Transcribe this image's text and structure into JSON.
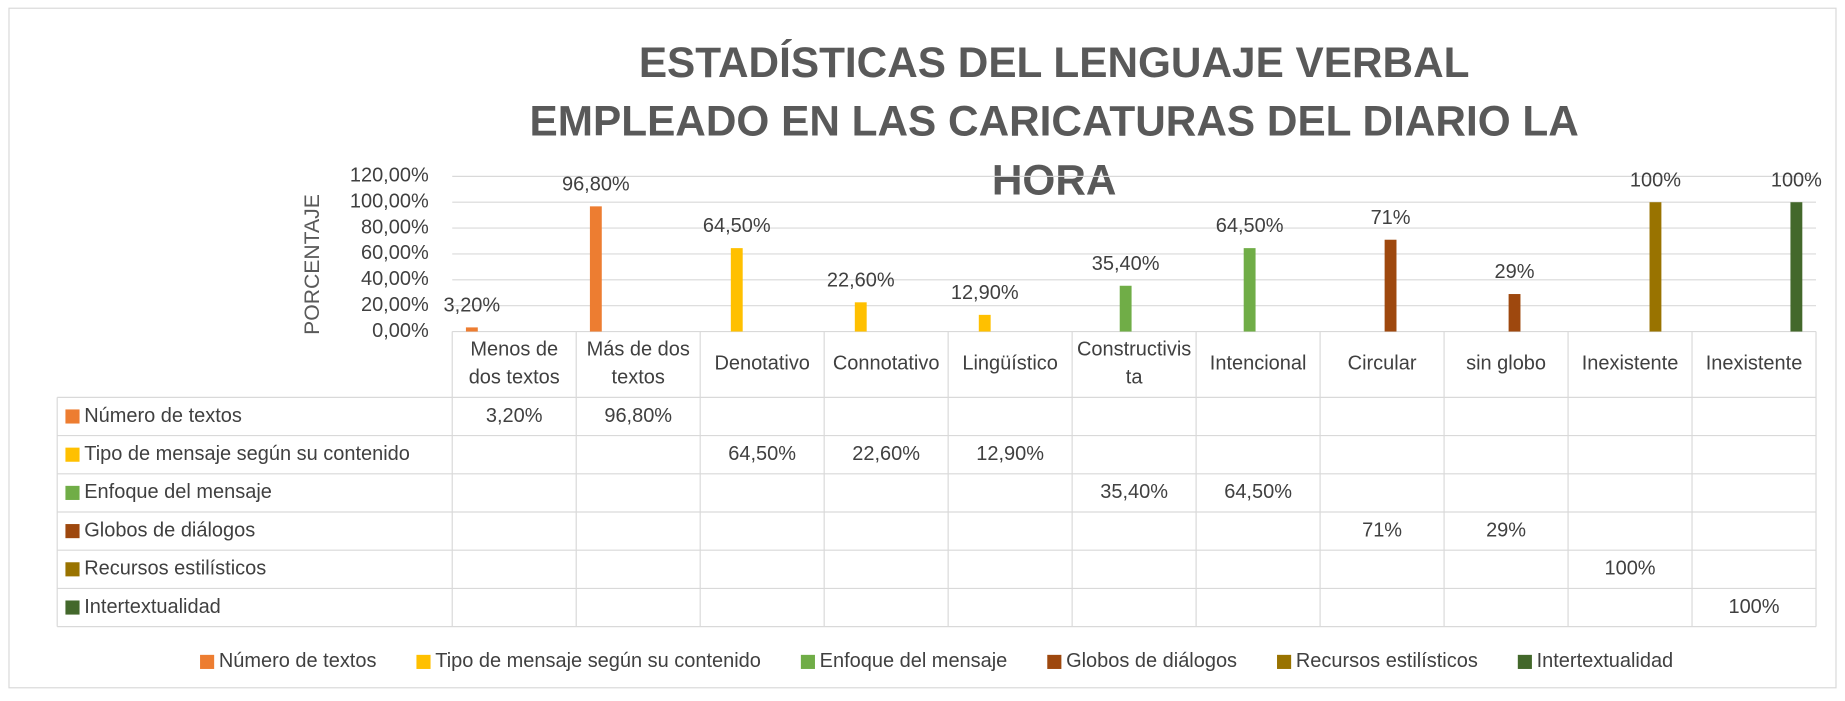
{
  "chart_data": {
    "type": "bar",
    "title": "ESTADÍSTICAS DEL LENGUAJE VERBAL EMPLEADO EN LAS CARICATURAS DEL DIARIO LA HORA",
    "ylabel": "PORCENTAJE",
    "categories": [
      "Menos de dos textos",
      "Más de dos textos",
      "Denotativo",
      "Connotativo",
      "Lingüístico",
      "Constructivista",
      "Intencional",
      "Circular",
      "sin globo",
      "Inexistente",
      "Inexistente"
    ],
    "series": [
      {
        "name": "Número de textos",
        "color": "#ED7D31",
        "values": [
          3.2,
          96.8,
          null,
          null,
          null,
          null,
          null,
          null,
          null,
          null,
          null
        ],
        "value_labels": [
          "3,20%",
          "96,80%",
          null,
          null,
          null,
          null,
          null,
          null,
          null,
          null,
          null
        ]
      },
      {
        "name": "Tipo de mensaje según su contenido",
        "color": "#FFC000",
        "values": [
          null,
          null,
          64.5,
          22.6,
          12.9,
          null,
          null,
          null,
          null,
          null,
          null
        ],
        "value_labels": [
          null,
          null,
          "64,50%",
          "22,60%",
          "12,90%",
          null,
          null,
          null,
          null,
          null,
          null
        ]
      },
      {
        "name": "Enfoque del mensaje",
        "color": "#70AD47",
        "values": [
          null,
          null,
          null,
          null,
          null,
          35.4,
          64.5,
          null,
          null,
          null,
          null
        ],
        "value_labels": [
          null,
          null,
          null,
          null,
          null,
          "35,40%",
          "64,50%",
          null,
          null,
          null,
          null
        ]
      },
      {
        "name": "Globos de diálogos",
        "color": "#9E480E",
        "values": [
          null,
          null,
          null,
          null,
          null,
          null,
          null,
          71,
          29,
          null,
          null
        ],
        "value_labels": [
          null,
          null,
          null,
          null,
          null,
          null,
          null,
          "71%",
          "29%",
          null,
          null
        ]
      },
      {
        "name": "Recursos estilísticos",
        "color": "#997300",
        "values": [
          null,
          null,
          null,
          null,
          null,
          null,
          null,
          null,
          null,
          100,
          null
        ],
        "value_labels": [
          null,
          null,
          null,
          null,
          null,
          null,
          null,
          null,
          null,
          "100%",
          null
        ]
      },
      {
        "name": "Intertextualidad",
        "color": "#43682B",
        "values": [
          null,
          null,
          null,
          null,
          null,
          null,
          null,
          null,
          null,
          null,
          100
        ],
        "value_labels": [
          null,
          null,
          null,
          null,
          null,
          null,
          null,
          null,
          null,
          null,
          "100%"
        ]
      }
    ],
    "ylim": [
      0,
      120
    ],
    "yticks": [
      {
        "value": 0,
        "label": "0,00%"
      },
      {
        "value": 20,
        "label": "20,00%"
      },
      {
        "value": 40,
        "label": "40,00%"
      },
      {
        "value": 60,
        "label": "60,00%"
      },
      {
        "value": 80,
        "label": "80,00%"
      },
      {
        "value": 100,
        "label": "100,00%"
      },
      {
        "value": 120,
        "label": "120,00%"
      }
    ],
    "grid": true,
    "legend": "bottom"
  }
}
